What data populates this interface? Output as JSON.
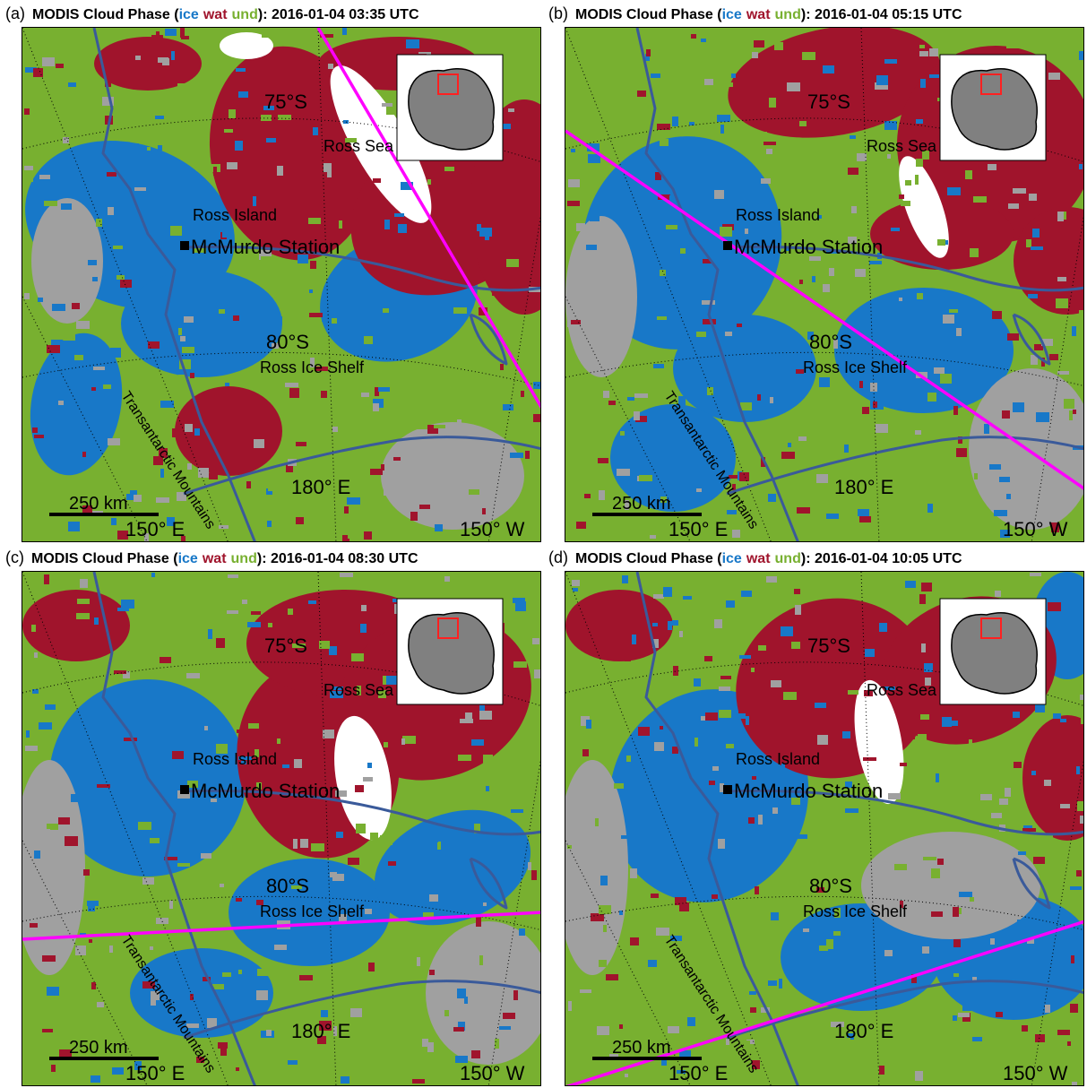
{
  "phase_colors": {
    "ice": "#1878c8",
    "wat": "#a0142c",
    "und": "#78b030",
    "clear": "#a0a0a0",
    "no_data": "#ffffff",
    "track": "#ff00ff",
    "coastline": "#3a5a9a"
  },
  "title_parts": {
    "prefix": "MODIS Cloud Phase (",
    "ice": "ice",
    "wat": "wat",
    "und": "und",
    "suffix": "): "
  },
  "labels": {
    "lat75": "75",
    "lat80": "80",
    "lat_unit": "S",
    "lon150e": "150",
    "lon180": "180",
    "lon150w": "150",
    "e": "E",
    "w": "W",
    "ross_sea": "Ross Sea",
    "ross_island": "Ross Island",
    "mcmurdo": "McMurdo Station",
    "ross_ice_shelf": "Ross Ice Shelf",
    "transantarctic": "Transantarctic Mountains",
    "scale": "250 km"
  },
  "panels": [
    {
      "letter": "(a)",
      "timestamp": "2016-01-04 03:35 UTC"
    },
    {
      "letter": "(b)",
      "timestamp": "2016-01-04 05:15 UTC"
    },
    {
      "letter": "(c)",
      "timestamp": "2016-01-04 08:30 UTC"
    },
    {
      "letter": "(d)",
      "timestamp": "2016-01-04 10:05 UTC"
    }
  ]
}
